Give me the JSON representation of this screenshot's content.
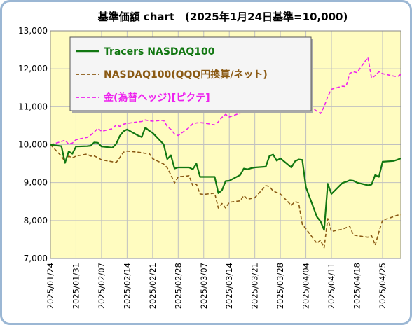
{
  "chart_data": {
    "type": "line",
    "title": "基準価額 chart　(2025年1月24日基準=10,000)",
    "ylim": [
      7000,
      13000
    ],
    "yticks": [
      "7,000",
      "8,000",
      "9,000",
      "10,000",
      "11,000",
      "12,000",
      "13,000"
    ],
    "ytick_values": [
      7000,
      8000,
      9000,
      10000,
      11000,
      12000,
      13000
    ],
    "xticks": [
      "2025/01/24",
      "2025/01/31",
      "2025/02/07",
      "2025/02/14",
      "2025/02/21",
      "2025/02/28",
      "2025/03/07",
      "2025/03/14",
      "2025/03/21",
      "2025/03/28",
      "2025/04/04",
      "2025/04/11",
      "2025/04/18",
      "2025/04/25"
    ],
    "xlim": [
      "2025/01/24",
      "2025/04/30"
    ],
    "grid": true,
    "legend_position": "top-left",
    "colors": {
      "plot_bg": "#fffcc0",
      "grid": "#c0c0c0",
      "frame": "#9bb7d4"
    },
    "series": [
      {
        "name": "Tracers NASDAQ100",
        "color": "#117711",
        "style": "solid",
        "points": [
          [
            "2025/01/24",
            10000
          ],
          [
            "2025/01/27",
            9960
          ],
          [
            "2025/01/28",
            9520
          ],
          [
            "2025/01/29",
            9820
          ],
          [
            "2025/01/30",
            9760
          ],
          [
            "2025/01/31",
            9950
          ],
          [
            "2025/02/03",
            9960
          ],
          [
            "2025/02/04",
            9970
          ],
          [
            "2025/02/05",
            10060
          ],
          [
            "2025/02/06",
            10050
          ],
          [
            "2025/02/07",
            9950
          ],
          [
            "2025/02/10",
            9920
          ],
          [
            "2025/02/11",
            10020
          ],
          [
            "2025/02/12",
            10230
          ],
          [
            "2025/02/13",
            10350
          ],
          [
            "2025/02/14",
            10400
          ],
          [
            "2025/02/17",
            10240
          ],
          [
            "2025/02/18",
            10200
          ],
          [
            "2025/02/19",
            10450
          ],
          [
            "2025/02/20",
            10370
          ],
          [
            "2025/02/21",
            10310
          ],
          [
            "2025/02/24",
            10010
          ],
          [
            "2025/02/25",
            9620
          ],
          [
            "2025/02/26",
            9720
          ],
          [
            "2025/02/27",
            9370
          ],
          [
            "2025/02/28",
            9400
          ],
          [
            "2025/03/03",
            9400
          ],
          [
            "2025/03/04",
            9350
          ],
          [
            "2025/03/05",
            9500
          ],
          [
            "2025/03/06",
            9150
          ],
          [
            "2025/03/07",
            9150
          ],
          [
            "2025/03/10",
            9150
          ],
          [
            "2025/03/11",
            8720
          ],
          [
            "2025/03/12",
            8800
          ],
          [
            "2025/03/13",
            9040
          ],
          [
            "2025/03/14",
            9050
          ],
          [
            "2025/03/17",
            9200
          ],
          [
            "2025/03/18",
            9370
          ],
          [
            "2025/03/19",
            9350
          ],
          [
            "2025/03/20",
            9380
          ],
          [
            "2025/03/21",
            9400
          ],
          [
            "2025/03/24",
            9420
          ],
          [
            "2025/03/25",
            9700
          ],
          [
            "2025/03/26",
            9740
          ],
          [
            "2025/03/27",
            9580
          ],
          [
            "2025/03/28",
            9640
          ],
          [
            "2025/03/31",
            9400
          ],
          [
            "2025/04/01",
            9560
          ],
          [
            "2025/04/02",
            9610
          ],
          [
            "2025/04/03",
            9600
          ],
          [
            "2025/04/04",
            8880
          ],
          [
            "2025/04/07",
            8100
          ],
          [
            "2025/04/08",
            7980
          ],
          [
            "2025/04/09",
            7750
          ],
          [
            "2025/04/10",
            8970
          ],
          [
            "2025/04/11",
            8700
          ],
          [
            "2025/04/14",
            8990
          ],
          [
            "2025/04/15",
            9020
          ],
          [
            "2025/04/16",
            9060
          ],
          [
            "2025/04/17",
            9050
          ],
          [
            "2025/04/18",
            9000
          ],
          [
            "2025/04/21",
            8930
          ],
          [
            "2025/04/22",
            8950
          ],
          [
            "2025/04/23",
            9200
          ],
          [
            "2025/04/24",
            9150
          ],
          [
            "2025/04/25",
            9550
          ],
          [
            "2025/04/28",
            9570
          ],
          [
            "2025/04/29",
            9600
          ],
          [
            "2025/04/30",
            9640
          ]
        ]
      },
      {
        "name": "NASDAQ100(QQQ円換算/ネット)",
        "color": "#8b5a14",
        "style": "dashed",
        "points": [
          [
            "2025/01/24",
            10000
          ],
          [
            "2025/01/27",
            9700
          ],
          [
            "2025/01/28",
            9550
          ],
          [
            "2025/01/29",
            9700
          ],
          [
            "2025/01/30",
            9650
          ],
          [
            "2025/01/31",
            9700
          ],
          [
            "2025/02/03",
            9750
          ],
          [
            "2025/02/04",
            9700
          ],
          [
            "2025/02/05",
            9700
          ],
          [
            "2025/02/06",
            9660
          ],
          [
            "2025/02/07",
            9600
          ],
          [
            "2025/02/10",
            9550
          ],
          [
            "2025/02/11",
            9530
          ],
          [
            "2025/02/12",
            9660
          ],
          [
            "2025/02/13",
            9800
          ],
          [
            "2025/02/14",
            9830
          ],
          [
            "2025/02/17",
            9800
          ],
          [
            "2025/02/18",
            9790
          ],
          [
            "2025/02/19",
            9770
          ],
          [
            "2025/02/20",
            9780
          ],
          [
            "2025/02/21",
            9630
          ],
          [
            "2025/02/24",
            9490
          ],
          [
            "2025/02/25",
            9390
          ],
          [
            "2025/02/26",
            9200
          ],
          [
            "2025/02/27",
            8990
          ],
          [
            "2025/02/28",
            9150
          ],
          [
            "2025/03/03",
            9180
          ],
          [
            "2025/03/04",
            8920
          ],
          [
            "2025/03/05",
            8960
          ],
          [
            "2025/03/06",
            8700
          ],
          [
            "2025/03/07",
            8690
          ],
          [
            "2025/03/10",
            8720
          ],
          [
            "2025/03/11",
            8330
          ],
          [
            "2025/03/12",
            8450
          ],
          [
            "2025/03/13",
            8330
          ],
          [
            "2025/03/14",
            8480
          ],
          [
            "2025/03/17",
            8520
          ],
          [
            "2025/03/18",
            8660
          ],
          [
            "2025/03/19",
            8560
          ],
          [
            "2025/03/20",
            8580
          ],
          [
            "2025/03/21",
            8600
          ],
          [
            "2025/03/24",
            8920
          ],
          [
            "2025/03/25",
            8900
          ],
          [
            "2025/03/26",
            8780
          ],
          [
            "2025/03/27",
            8740
          ],
          [
            "2025/03/28",
            8700
          ],
          [
            "2025/03/31",
            8400
          ],
          [
            "2025/04/01",
            8500
          ],
          [
            "2025/04/02",
            8470
          ],
          [
            "2025/04/03",
            7900
          ],
          [
            "2025/04/04",
            7780
          ],
          [
            "2025/04/07",
            7400
          ],
          [
            "2025/04/08",
            7480
          ],
          [
            "2025/04/09",
            7280
          ],
          [
            "2025/04/10",
            8050
          ],
          [
            "2025/04/11",
            7710
          ],
          [
            "2025/04/14",
            7770
          ],
          [
            "2025/04/15",
            7810
          ],
          [
            "2025/04/16",
            7850
          ],
          [
            "2025/04/17",
            7620
          ],
          [
            "2025/04/18",
            7600
          ],
          [
            "2025/04/21",
            7560
          ],
          [
            "2025/04/22",
            7600
          ],
          [
            "2025/04/23",
            7350
          ],
          [
            "2025/04/24",
            7700
          ],
          [
            "2025/04/25",
            8010
          ],
          [
            "2025/04/28",
            8100
          ],
          [
            "2025/04/29",
            8140
          ],
          [
            "2025/04/30",
            8150
          ]
        ]
      },
      {
        "name": "金(為替ヘッジ)[ピクテ]",
        "color": "#ee22ee",
        "style": "dashed",
        "points": [
          [
            "2025/01/24",
            10000
          ],
          [
            "2025/01/27",
            10080
          ],
          [
            "2025/01/28",
            10120
          ],
          [
            "2025/01/29",
            10010
          ],
          [
            "2025/01/30",
            10040
          ],
          [
            "2025/01/31",
            10130
          ],
          [
            "2025/02/03",
            10190
          ],
          [
            "2025/02/04",
            10250
          ],
          [
            "2025/02/05",
            10330
          ],
          [
            "2025/02/06",
            10430
          ],
          [
            "2025/02/07",
            10350
          ],
          [
            "2025/02/10",
            10420
          ],
          [
            "2025/02/11",
            10520
          ],
          [
            "2025/02/12",
            10480
          ],
          [
            "2025/02/13",
            10540
          ],
          [
            "2025/02/14",
            10560
          ],
          [
            "2025/02/17",
            10600
          ],
          [
            "2025/02/18",
            10610
          ],
          [
            "2025/02/19",
            10650
          ],
          [
            "2025/02/20",
            10630
          ],
          [
            "2025/02/21",
            10620
          ],
          [
            "2025/02/24",
            10640
          ],
          [
            "2025/02/25",
            10480
          ],
          [
            "2025/02/26",
            10400
          ],
          [
            "2025/02/27",
            10280
          ],
          [
            "2025/02/28",
            10240
          ],
          [
            "2025/03/03",
            10450
          ],
          [
            "2025/03/04",
            10550
          ],
          [
            "2025/03/05",
            10570
          ],
          [
            "2025/03/06",
            10580
          ],
          [
            "2025/03/07",
            10570
          ],
          [
            "2025/03/10",
            10520
          ],
          [
            "2025/03/11",
            10600
          ],
          [
            "2025/03/12",
            10720
          ],
          [
            "2025/03/13",
            10800
          ],
          [
            "2025/03/14",
            10730
          ],
          [
            "2025/03/17",
            10830
          ],
          [
            "2025/03/18",
            10930
          ],
          [
            "2025/03/19",
            10880
          ],
          [
            "2025/03/20",
            10960
          ],
          [
            "2025/03/21",
            10860
          ],
          [
            "2025/03/24",
            10870
          ],
          [
            "2025/03/25",
            10900
          ],
          [
            "2025/03/26",
            10910
          ],
          [
            "2025/03/27",
            11030
          ],
          [
            "2025/03/28",
            11070
          ],
          [
            "2025/03/31",
            11130
          ],
          [
            "2025/04/01",
            11250
          ],
          [
            "2025/04/02",
            11270
          ],
          [
            "2025/04/03",
            11200
          ],
          [
            "2025/04/04",
            11100
          ],
          [
            "2025/04/07",
            10880
          ],
          [
            "2025/04/08",
            10820
          ],
          [
            "2025/04/09",
            11000
          ],
          [
            "2025/04/10",
            11270
          ],
          [
            "2025/04/11",
            11460
          ],
          [
            "2025/04/14",
            11540
          ],
          [
            "2025/04/15",
            11530
          ],
          [
            "2025/04/16",
            11880
          ],
          [
            "2025/04/17",
            11920
          ],
          [
            "2025/04/18",
            11900
          ],
          [
            "2025/04/21",
            12300
          ],
          [
            "2025/04/22",
            11750
          ],
          [
            "2025/04/23",
            11820
          ],
          [
            "2025/04/24",
            11920
          ],
          [
            "2025/04/25",
            11870
          ],
          [
            "2025/04/28",
            11810
          ],
          [
            "2025/04/29",
            11790
          ],
          [
            "2025/04/30",
            11850
          ]
        ]
      }
    ]
  }
}
